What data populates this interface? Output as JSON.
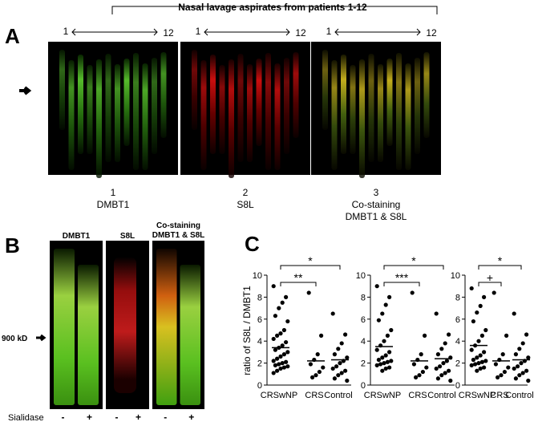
{
  "header": {
    "title": "Nasal lavage aspirates from patients 1-12"
  },
  "panel_a": {
    "letter": "A",
    "range_start": "1",
    "range_end": "12",
    "captions": [
      {
        "number": "1",
        "label": "DMBT1"
      },
      {
        "number": "2",
        "label": "S8L"
      },
      {
        "number": "3",
        "label": "Co-staining",
        "label2": "DMBT1 & S8L"
      }
    ]
  },
  "panel_b": {
    "letter": "B",
    "lanes": [
      "DMBT1",
      "S8L",
      "Co-staining\nDMBT1 & S8L"
    ],
    "marker": "900 kD",
    "treatment": "Sialidase",
    "signs": [
      "-",
      "+"
    ]
  },
  "panel_c": {
    "letter": "C",
    "ylabel": "ratio of S8L / DMBT1",
    "ylim": [
      0,
      10
    ],
    "yticks": [
      0,
      2,
      4,
      6,
      8,
      10
    ],
    "categories": [
      "CRSwNP",
      "CRS",
      "Control"
    ],
    "plots": [
      {
        "sig_wide": "*",
        "sig_narrow": "**",
        "groups": [
          {
            "mean": 3.4,
            "points": [
              9,
              8,
              7.5,
              7,
              6.3,
              5.8,
              5,
              4.7,
              4.5,
              4.2,
              3.9,
              3.6,
              3.4,
              3.2,
              3,
              2.8,
              2.6,
              2.4,
              2.2,
              2.1,
              2,
              1.9,
              1.8,
              1.7,
              1.6,
              1.5,
              1.3,
              1.1
            ]
          },
          {
            "mean": 2.2,
            "points": [
              8.4,
              4.5,
              2.8,
              2.3,
              1.9,
              1.6,
              1.2,
              0.9,
              0.7
            ]
          },
          {
            "mean": 2.3,
            "points": [
              6.5,
              4.6,
              3.8,
              3.3,
              2.8,
              2.5,
              2.2,
              2,
              1.7,
              1.5,
              1.3,
              1.1,
              0.9,
              0.6,
              0.4
            ]
          }
        ]
      },
      {
        "sig_wide": "*",
        "sig_narrow": "***",
        "groups": [
          {
            "mean": 3.5,
            "points": [
              9,
              8,
              7.3,
              6.5,
              5.9,
              5,
              4.5,
              4,
              3.6,
              3.2,
              3,
              2.7,
              2.5,
              2.3,
              2.2,
              2.1,
              2,
              1.9,
              1.8,
              1.6,
              1.5,
              1.3
            ]
          },
          {
            "mean": 2.2,
            "points": [
              8.4,
              4.5,
              2.8,
              2.3,
              1.9,
              1.6,
              1.2,
              0.9,
              0.7
            ]
          },
          {
            "mean": 2.4,
            "points": [
              6.5,
              4.6,
              3.8,
              3.3,
              2.8,
              2.5,
              2.2,
              2,
              1.7,
              1.5,
              1.3,
              1.1,
              0.9,
              0.6,
              0.4
            ]
          }
        ]
      },
      {
        "sig_wide": "*",
        "sig_narrow": "+",
        "groups": [
          {
            "mean": 3.6,
            "points": [
              8.8,
              8,
              7.2,
              6.6,
              5.8,
              5,
              4.5,
              4,
              3.6,
              3.2,
              3,
              2.7,
              2.5,
              2.3,
              2.2,
              2.1,
              2,
              1.9,
              1.8,
              1.6,
              1.5,
              1.3
            ]
          },
          {
            "mean": 2.2,
            "points": [
              8.4,
              4.5,
              2.8,
              2.3,
              1.9,
              1.6,
              1.2,
              0.9,
              0.7
            ]
          },
          {
            "mean": 2.3,
            "points": [
              6.5,
              4.6,
              3.8,
              3.3,
              2.8,
              2.5,
              2.2,
              2,
              1.7,
              1.5,
              1.3,
              1.1,
              0.9,
              0.6,
              0.4
            ]
          }
        ]
      }
    ]
  }
}
